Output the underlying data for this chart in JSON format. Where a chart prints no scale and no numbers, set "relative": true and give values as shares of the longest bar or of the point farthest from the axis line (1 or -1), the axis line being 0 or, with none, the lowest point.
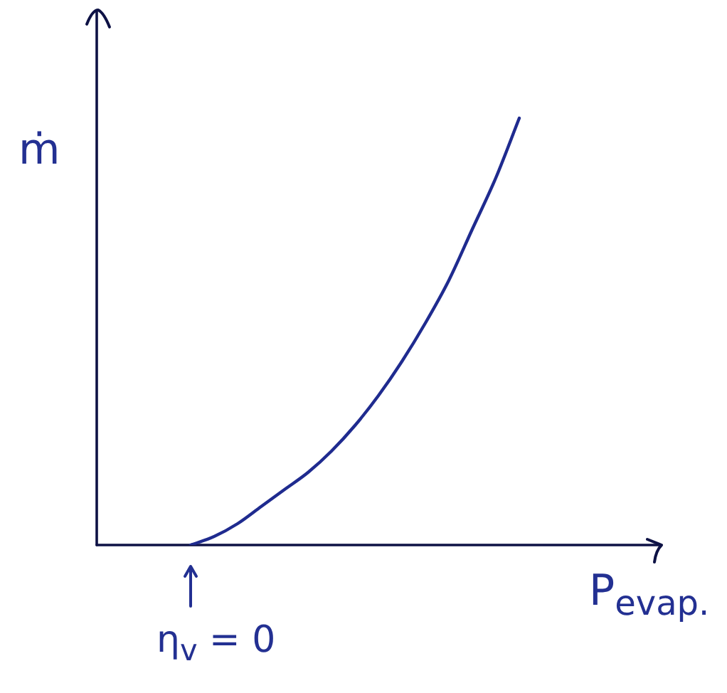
{
  "chart_data": {
    "type": "line",
    "xlabel": "P$_{evap.}$",
    "ylabel": "ṁ",
    "annotations": [
      "η$_{v}$ = 0"
    ],
    "categories": [
      null,
      null,
      null,
      null,
      null,
      null,
      null,
      null,
      null,
      null,
      null,
      null,
      null,
      null,
      null,
      null,
      null,
      null,
      null,
      null,
      null,
      null,
      null,
      null,
      null
    ],
    "series": [
      {
        "color": "#1f2b8f",
        "values": [
          null,
          null,
          null,
          null,
          0,
          0.02,
          0.05,
          0.09,
          0.13,
          0.17,
          0.22,
          0.28,
          0.35,
          0.43,
          0.52,
          0.62,
          0.74,
          0.86,
          1,
          null,
          null,
          null,
          null,
          null,
          null
        ]
      }
    ],
    "relative": true,
    "marker": "none",
    "line_style": "solid"
  }
}
